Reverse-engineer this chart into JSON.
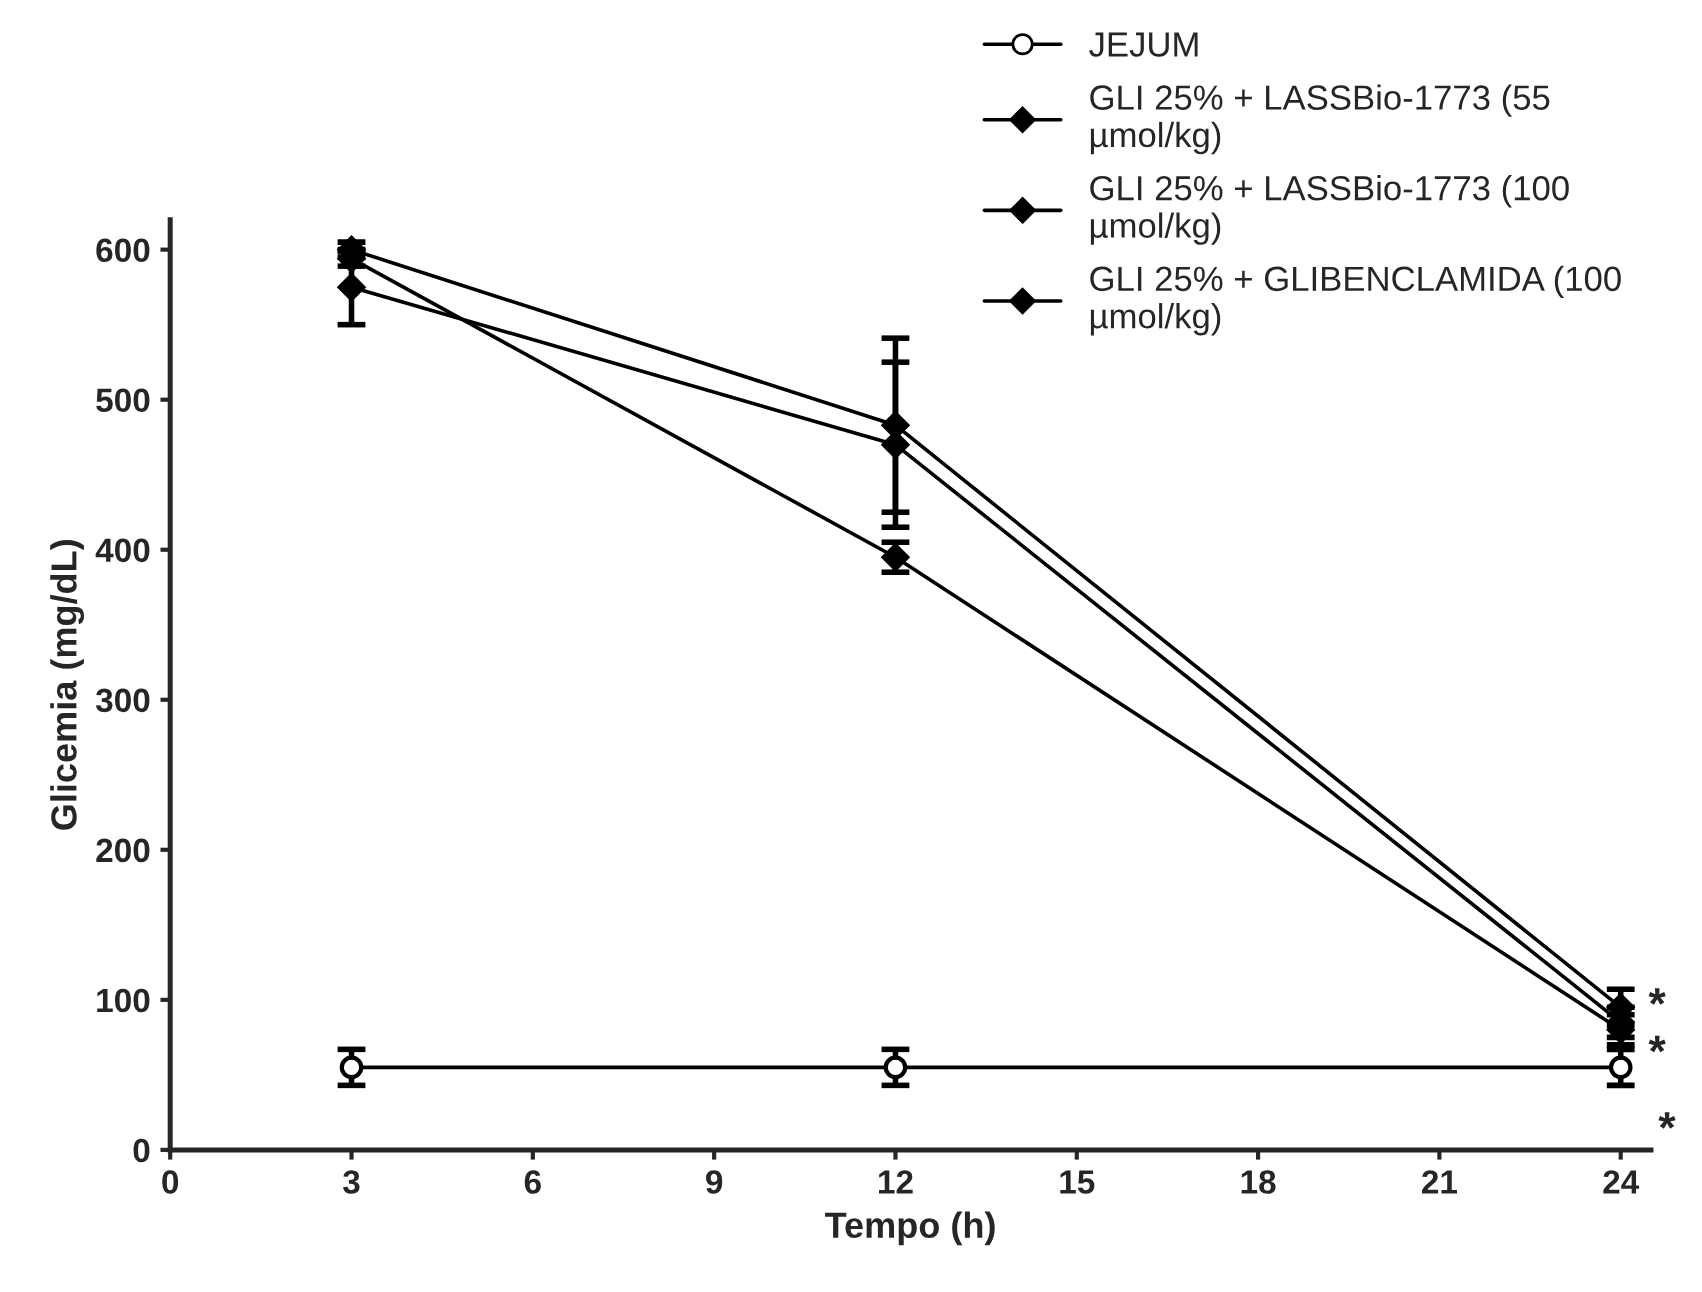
{
  "chart_data": {
    "type": "line",
    "xlabel": "Tempo (h)",
    "ylabel": "Glicemia (mg/dL)",
    "x": [
      3,
      12,
      24
    ],
    "series": [
      {
        "name": "JEJUM",
        "color": "#000000",
        "marker": "circle",
        "values": [
          55,
          55,
          55
        ],
        "errors": [
          12,
          12,
          12
        ]
      },
      {
        "name": "GLI 25% + LASSBio-1773 (55 µmol/kg)",
        "color": "#000000",
        "marker": "diamond",
        "values": [
          575,
          470,
          85
        ],
        "errors": [
          25,
          55,
          10
        ]
      },
      {
        "name": "GLI 25% + LASSBio-1773 (100 µmol/kg)",
        "color": "#000000",
        "marker": "diamond",
        "values": [
          600,
          483,
          95
        ],
        "errors": [
          5,
          58,
          12
        ]
      },
      {
        "name": "GLI 25% + GLIBENCLAMIDA (100 µmol/kg)",
        "color": "#000000",
        "marker": "diamond",
        "values": [
          594,
          395,
          80
        ],
        "errors": [
          5,
          10,
          10
        ]
      }
    ],
    "xlim": [
      0,
      24.5
    ],
    "xticks": [
      0,
      3,
      6,
      9,
      12,
      15,
      18,
      21,
      24
    ],
    "ylim": [
      0,
      620
    ],
    "yticks": [
      0,
      100,
      200,
      300,
      400,
      500,
      600
    ],
    "annotations": [
      {
        "text": "*",
        "x": 24,
        "y": 95
      },
      {
        "text": "*",
        "x": 24,
        "y": 80
      },
      "*"
    ],
    "grid": false,
    "legend": "top right"
  }
}
